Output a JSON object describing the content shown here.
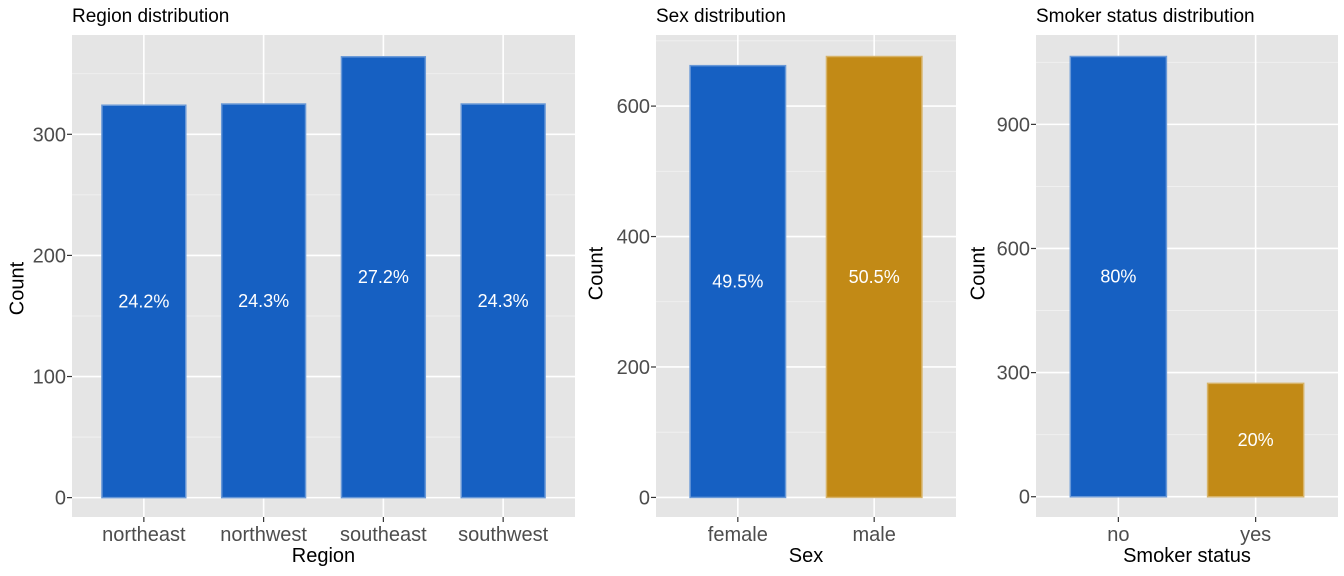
{
  "chart_data": [
    {
      "type": "bar",
      "title": "Region distribution",
      "xlabel": "Region",
      "ylabel": "Count",
      "categories": [
        "northeast",
        "northwest",
        "southeast",
        "southwest"
      ],
      "values": [
        324,
        325,
        364,
        325
      ],
      "labels": [
        "24.2%",
        "24.3%",
        "27.2%",
        "24.3%"
      ],
      "colors": [
        "#1660C2",
        "#1660C2",
        "#1660C2",
        "#1660C2"
      ],
      "ylim": [
        -16,
        382
      ],
      "yticks": [
        0,
        100,
        200,
        300
      ],
      "grid": true,
      "legend": "none"
    },
    {
      "type": "bar",
      "title": "Sex distribution",
      "xlabel": "Sex",
      "ylabel": "Count",
      "categories": [
        "female",
        "male"
      ],
      "values": [
        662,
        676
      ],
      "labels": [
        "49.5%",
        "50.5%"
      ],
      "colors": [
        "#1660C2",
        "#C28A16"
      ],
      "ylim": [
        -30,
        709
      ],
      "yticks": [
        0,
        200,
        400,
        600
      ],
      "grid": true,
      "legend": "none"
    },
    {
      "type": "bar",
      "title": "Smoker status distribution",
      "xlabel": "Smoker status",
      "ylabel": "Count",
      "categories": [
        "no",
        "yes"
      ],
      "values": [
        1064,
        274
      ],
      "labels": [
        "80%",
        "20%"
      ],
      "colors": [
        "#1660C2",
        "#C28A16"
      ],
      "ylim": [
        -49,
        1116
      ],
      "yticks": [
        0,
        300,
        600,
        900
      ],
      "grid": true,
      "legend": "none"
    }
  ]
}
